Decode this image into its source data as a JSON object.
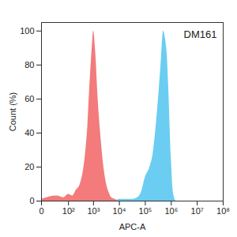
{
  "chart_data": {
    "type": "area",
    "title": "DM161",
    "x_label": "APC-A",
    "y_label": "Count (%)",
    "log": "x",
    "x": [
      0,
      30,
      60,
      100,
      150,
      200,
      300,
      400,
      500,
      600,
      700,
      800,
      900,
      1000,
      1200,
      1500,
      2000,
      2500,
      3000,
      4000,
      5000,
      7000,
      10000,
      15000,
      20000,
      30000,
      50000,
      70000,
      100000,
      150000,
      200000,
      300000,
      400000,
      500000,
      600000,
      700000,
      800000,
      1000000,
      1200000,
      1500000
    ],
    "series": [
      {
        "color": "#f26d6d",
        "values": [
          1,
          3,
          2,
          4,
          3,
          6,
          10,
          18,
          30,
          45,
          65,
          80,
          92,
          100,
          88,
          60,
          35,
          20,
          12,
          5,
          2,
          1,
          0,
          0,
          0,
          0,
          0,
          0,
          0,
          0,
          0,
          0,
          0,
          0,
          0,
          0,
          0,
          0,
          0,
          0
        ]
      },
      {
        "color": "#5bc8ef",
        "values": [
          0,
          0,
          0,
          0,
          0,
          0,
          0,
          0,
          0,
          0,
          0,
          0,
          0,
          0,
          0,
          0,
          0,
          0,
          0,
          0,
          0,
          0,
          1,
          1,
          1,
          1,
          2,
          5,
          14,
          20,
          28,
          55,
          80,
          100,
          95,
          85,
          65,
          25,
          5,
          0
        ]
      }
    ],
    "xlim": [
      0,
      100000000
    ],
    "xticks": [
      0,
      {
        "value": 100,
        "label": "10²"
      },
      {
        "value": 1000,
        "label": "10³"
      },
      {
        "value": 10000,
        "label": "10⁴"
      },
      {
        "value": 100000,
        "label": "10⁵"
      },
      {
        "value": 1000000,
        "label": "10⁶"
      },
      {
        "value": 10000000,
        "label": "10⁷"
      },
      {
        "value": 100000000,
        "label": "10⁸"
      }
    ],
    "ylim": [
      0,
      105
    ],
    "yticks": [
      0,
      20,
      40,
      60,
      80,
      100
    ]
  }
}
